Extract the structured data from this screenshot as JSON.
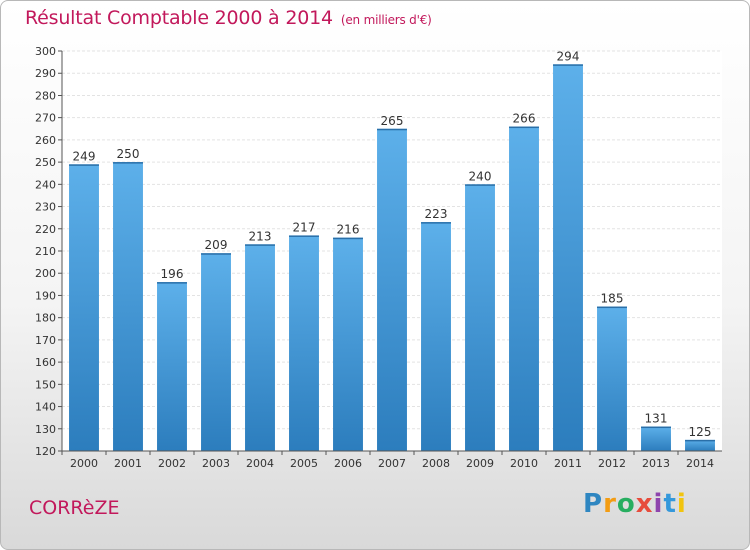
{
  "header": {
    "title": "Résultat Comptable 2000 à 2014",
    "subtitle": "(en milliers d'€)"
  },
  "footer": {
    "region": "CORRèZE",
    "brand_letters": [
      "P",
      "r",
      "o",
      "x",
      "i",
      "t",
      "i"
    ]
  },
  "colors": {
    "bar_top": "#5db0ea",
    "bar_bottom": "#2c7dbd",
    "title": "#c2185b"
  },
  "chart_data": {
    "type": "bar",
    "title": "Résultat Comptable 2000 à 2014",
    "subtitle": "(en milliers d'€)",
    "categories": [
      "2000",
      "2001",
      "2002",
      "2003",
      "2004",
      "2005",
      "2006",
      "2007",
      "2008",
      "2009",
      "2010",
      "2011",
      "2012",
      "2013",
      "2014"
    ],
    "values": [
      249,
      250,
      196,
      209,
      213,
      217,
      216,
      265,
      223,
      240,
      266,
      294,
      185,
      131,
      125
    ],
    "ylim": [
      120,
      300
    ],
    "yticks": [
      120,
      130,
      140,
      150,
      160,
      170,
      180,
      190,
      200,
      210,
      220,
      230,
      240,
      250,
      260,
      270,
      280,
      290,
      300
    ],
    "grid": true,
    "data_labels": true
  }
}
